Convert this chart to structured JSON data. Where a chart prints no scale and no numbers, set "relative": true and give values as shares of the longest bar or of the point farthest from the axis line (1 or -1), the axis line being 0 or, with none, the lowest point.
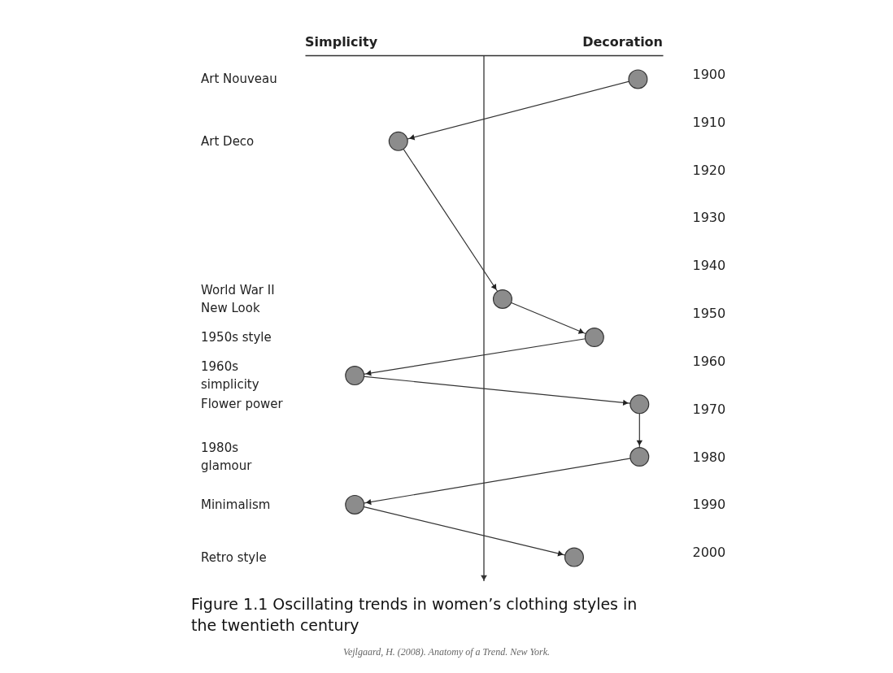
{
  "chart_data": {
    "type": "line",
    "relative": true,
    "orientation": "horizontal",
    "marker": "circle",
    "title": "Figure 1.1 Oscillating trends in women’s clothing styles in the twentieth century",
    "x": [
      1901,
      1914,
      1947,
      1955,
      1963,
      1969,
      1980,
      1990,
      2001
    ],
    "series": [
      {
        "color": "#333333",
        "values": [
          0.99,
          -0.55,
          0.12,
          0.71,
          -0.83,
          1,
          1,
          -0.83,
          0.58
        ]
      }
    ],
    "ylim": [
      2006,
      1896
    ],
    "yticks": [
      1900,
      1910,
      1920,
      1930,
      1940,
      1950,
      1960,
      1970,
      1980,
      1990,
      2000
    ],
    "annotations": [
      "Simplicity",
      "Decoration",
      "Art Nouveau",
      "Art Deco",
      "World War II\nNew Look",
      "1950s style",
      "1960s\nsimplicity",
      "Flower power",
      "1980s\nglamour",
      "Minimalism",
      "Retro style",
      "Vejlgaard, H. (2008). Anatomy of a Trend. New York."
    ]
  }
}
